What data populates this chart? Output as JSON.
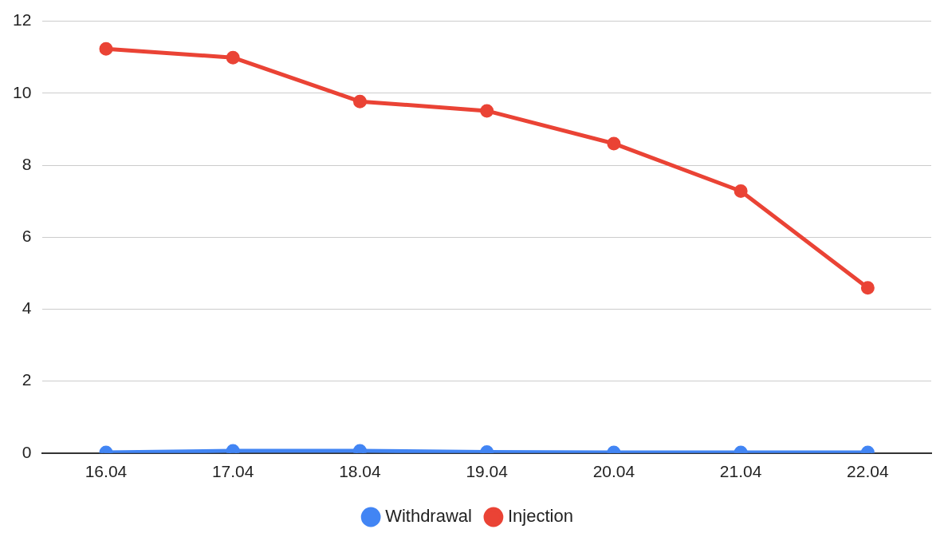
{
  "chart_data": {
    "type": "line",
    "categories": [
      "16.04",
      "17.04",
      "18.04",
      "19.04",
      "20.04",
      "21.04",
      "22.04"
    ],
    "series": [
      {
        "name": "Withdrawal",
        "color": "#4285f4",
        "values": [
          0.02,
          0.06,
          0.06,
          0.03,
          0.02,
          0.02,
          0.02
        ]
      },
      {
        "name": "Injection",
        "color": "#ea4335",
        "values": [
          11.23,
          10.99,
          9.77,
          9.51,
          8.6,
          7.28,
          4.59
        ]
      }
    ],
    "ylim": [
      0,
      12
    ],
    "yticks": [
      0,
      2,
      4,
      6,
      8,
      10,
      12
    ],
    "grid": "y",
    "legend": "bottom",
    "marker": "circle",
    "line_style": "solid"
  }
}
